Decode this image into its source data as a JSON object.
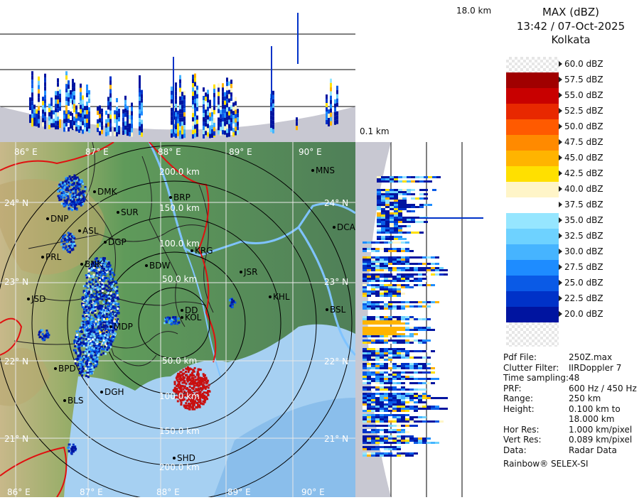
{
  "product": {
    "title": "MAX (dBZ)",
    "datetime": "13:42 / 07-Oct-2025",
    "station": "Kolkata"
  },
  "profile_labels": {
    "top_height": "18.0 km",
    "bottom_height": "0.1 km"
  },
  "scale": [
    {
      "label": "60.0 dBZ",
      "color": "checker"
    },
    {
      "label": "57.5 dBZ",
      "color": "#a00000"
    },
    {
      "label": "55.0 dBZ",
      "color": "#c80000"
    },
    {
      "label": "52.5 dBZ",
      "color": "#e82800"
    },
    {
      "label": "50.0 dBZ",
      "color": "#ff5a00"
    },
    {
      "label": "47.5 dBZ",
      "color": "#ff8a00"
    },
    {
      "label": "45.0 dBZ",
      "color": "#ffb400"
    },
    {
      "label": "42.5 dBZ",
      "color": "#ffe000"
    },
    {
      "label": "40.0 dBZ",
      "color": "#fff5c8"
    },
    {
      "label": "37.5 dBZ",
      "color": "#ffffff"
    },
    {
      "label": "35.0 dBZ",
      "color": "#96e6ff"
    },
    {
      "label": "32.5 dBZ",
      "color": "#6ed2ff"
    },
    {
      "label": "30.0 dBZ",
      "color": "#46b4ff"
    },
    {
      "label": "27.5 dBZ",
      "color": "#1e8cff"
    },
    {
      "label": "25.0 dBZ",
      "color": "#0a5ae6"
    },
    {
      "label": "22.5 dBZ",
      "color": "#0032c8"
    },
    {
      "label": "20.0 dBZ",
      "color": "#0014a0"
    }
  ],
  "info": [
    {
      "key": "Pdf File:",
      "value": "250Z.max"
    },
    {
      "key": "Clutter Filter:",
      "value": "IIRDoppler 7"
    },
    {
      "key": "Time sampling:",
      "value": "48"
    },
    {
      "key": "PRF:",
      "value": "600 Hz / 450 Hz"
    },
    {
      "key": "Range:",
      "value": "250 km"
    },
    {
      "key": "Height:",
      "value": "0.100 km to"
    },
    {
      "key": "",
      "value": "18.000 km"
    },
    {
      "key": "Hor Res:",
      "value": "1.000 km/pixel"
    },
    {
      "key": "Vert Res:",
      "value": "0.089 km/pixel"
    },
    {
      "key": "Data:",
      "value": "Radar Data"
    }
  ],
  "credit": "Rainbow® SELEX-SI",
  "longitudes": [
    "86° E",
    "87° E",
    "88° E",
    "89° E",
    "90° E"
  ],
  "latitudes": [
    "24° N",
    "23° N",
    "22° N",
    "21° N"
  ],
  "range_rings": [
    "50.0 km",
    "100.0 km",
    "150.0 km",
    "200.0 km",
    "50.0 km",
    "100.0 km",
    "150.0 km",
    "200.0 km"
  ],
  "places": [
    "MNS",
    "BRP",
    "DMK",
    "DNP",
    "SUR",
    "ASL",
    "DGP",
    "DCA",
    "KRG",
    "PRL",
    "BNK",
    "BDW",
    "JSR",
    "KHL",
    "JSD",
    "BSL",
    "DD",
    "KOL",
    "MDP",
    "BPD",
    "DGH",
    "BLS",
    "SHD"
  ],
  "colors": {
    "land": "#5c8a5a",
    "sea": "#a6d0f2",
    "deep_sea": "#7fb6e8",
    "border": "#e01010",
    "profile_bg": "#c8c8d2",
    "ring": "#000000"
  }
}
